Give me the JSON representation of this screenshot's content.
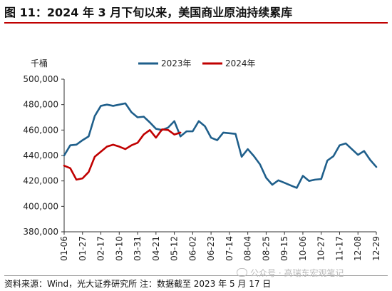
{
  "title": "图 11：2024 年 3 月下旬以来，美国商业原油持续累库",
  "source": "资料来源：Wind，光大证券研究所  注：数据截至 2023 年 5 月 17 日",
  "watermark": "公众号 · 高瑞东宏观笔记",
  "colors": {
    "title_rule": "#c00000",
    "series_2023": "#1f5f8b",
    "series_2024": "#c00000"
  },
  "chart_data": {
    "type": "line",
    "ylabel": "千桶",
    "ylim": [
      380000,
      500000
    ],
    "yticks": [
      380000,
      400000,
      420000,
      440000,
      460000,
      480000,
      500000
    ],
    "ytick_labels": [
      "380,000",
      "400,000",
      "420,000",
      "440,000",
      "460,000",
      "480,000",
      "500,000"
    ],
    "xtick_labels": [
      "01-06",
      "01-27",
      "02-17",
      "03-10",
      "03-31",
      "04-21",
      "05-12",
      "06-02",
      "06-23",
      "07-14",
      "08-04",
      "08-25",
      "09-15",
      "10-06",
      "10-27",
      "11-17",
      "12-08",
      "12-29"
    ],
    "legend_position": "top",
    "series": [
      {
        "name": "2023年",
        "values": [
          440000,
          448000,
          448500,
          452000,
          455000,
          471000,
          479000,
          480000,
          479000,
          480000,
          481000,
          474000,
          470000,
          470500,
          466000,
          461000,
          460000,
          462000,
          467000,
          455000,
          459000,
          459000,
          467000,
          463000,
          454000,
          452000,
          458000,
          457500,
          457000,
          439000,
          445000,
          439500,
          433000,
          422500,
          417000,
          420500,
          418500,
          416500,
          414500,
          424000,
          420000,
          421000,
          421500,
          436000,
          439500,
          448000,
          449500,
          445000,
          440500,
          443500,
          436500,
          431000
        ]
      },
      {
        "name": "2024年",
        "values": [
          432000,
          430000,
          421000,
          422000,
          427000,
          439000,
          443000,
          447000,
          448500,
          447000,
          445000,
          448000,
          450000,
          456500,
          460000,
          454000,
          460500,
          460000,
          456500,
          458000
        ]
      }
    ]
  }
}
